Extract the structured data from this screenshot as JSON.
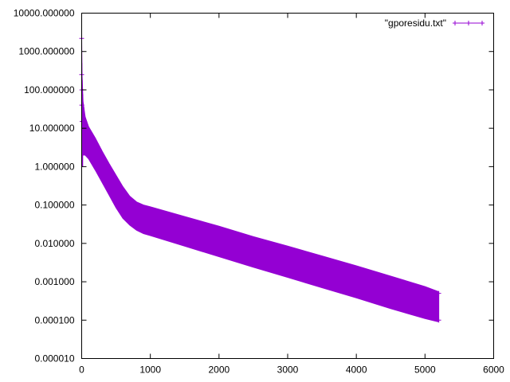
{
  "chart_data": {
    "type": "line",
    "title": "",
    "xlabel": "",
    "ylabel": "",
    "x_scale": "linear",
    "y_scale": "log",
    "xlim": [
      0,
      6000
    ],
    "ylim": [
      1e-05,
      10000
    ],
    "x_ticks": [
      "0",
      "1000",
      "2000",
      "3000",
      "4000",
      "5000",
      "6000"
    ],
    "y_ticks": [
      "10000.000000",
      "1000.000000",
      "100.000000",
      "10.000000",
      "1.000000",
      "0.100000",
      "0.010000",
      "0.001000",
      "0.000100",
      "0.000010"
    ],
    "grid": false,
    "legend_position": "top-right",
    "series": [
      {
        "name": "\"gporesidu.txt\"",
        "color": "#9400d3",
        "style": "linespoints",
        "marker": "plus",
        "upper_envelope": {
          "x": [
            0,
            5,
            20,
            50,
            100,
            200,
            300,
            400,
            500,
            600,
            700,
            800,
            900,
            1000,
            1500,
            2000,
            2500,
            3000,
            3500,
            4000,
            4500,
            5000,
            5200
          ],
          "y": [
            2200,
            250,
            50,
            20,
            11,
            5.5,
            2.5,
            1.2,
            0.6,
            0.3,
            0.17,
            0.12,
            0.1,
            0.09,
            0.05,
            0.028,
            0.015,
            0.0085,
            0.0047,
            0.0026,
            0.0014,
            0.00075,
            0.00055
          ]
        },
        "lower_envelope": {
          "x": [
            0,
            50,
            100,
            200,
            300,
            400,
            500,
            600,
            700,
            800,
            900,
            1000,
            1500,
            2000,
            2500,
            3000,
            3500,
            4000,
            4500,
            5000,
            5200
          ],
          "y": [
            2,
            2,
            1.6,
            0.8,
            0.38,
            0.18,
            0.085,
            0.045,
            0.03,
            0.022,
            0.018,
            0.016,
            0.0085,
            0.0045,
            0.0024,
            0.0013,
            0.0007,
            0.00038,
            0.0002,
            0.00011,
            9e-05
          ]
        }
      }
    ]
  }
}
